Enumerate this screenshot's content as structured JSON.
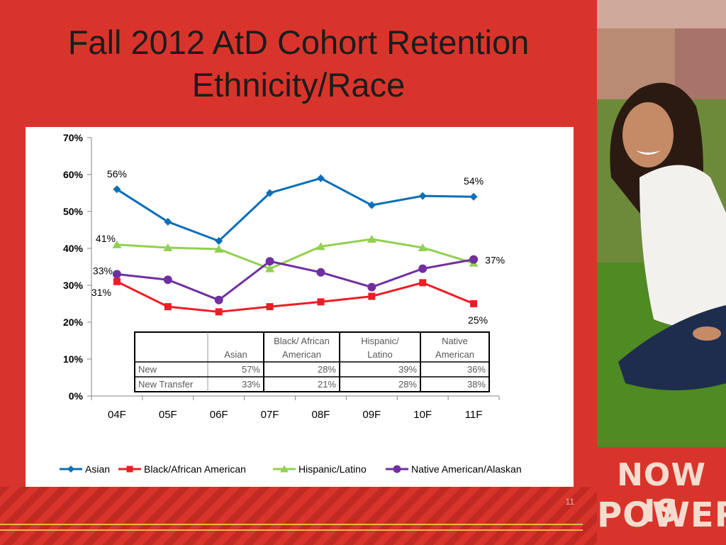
{
  "slide": {
    "title_line1": "Fall 2012 AtD Cohort Retention",
    "title_line2": "Ethnicity/Race",
    "slide_number": "11"
  },
  "brand": {
    "line1": "NOW IS",
    "line2": "POWER"
  },
  "colors": {
    "background": "#d9342b",
    "asian": "#0b6fb8",
    "black": "#ee1c25",
    "hispanic": "#92d050",
    "native": "#7030a0"
  },
  "chart_data": {
    "type": "line",
    "x": [
      "04F",
      "05F",
      "06F",
      "07F",
      "08F",
      "09F",
      "10F",
      "11F"
    ],
    "y_ticks": [
      "0%",
      "10%",
      "20%",
      "30%",
      "40%",
      "50%",
      "60%",
      "70%"
    ],
    "ylim": [
      0,
      70
    ],
    "legend_position": "bottom",
    "series": [
      {
        "name": "Asian",
        "color": "#0b6fb8",
        "marker": "diamond",
        "values": [
          56,
          47.2,
          42,
          55,
          59,
          51.7,
          54.2,
          54
        ]
      },
      {
        "name": "Black/African American",
        "color": "#ee1c25",
        "marker": "square",
        "values": [
          31,
          24.2,
          22.8,
          24.2,
          25.5,
          27,
          30.7,
          25
        ]
      },
      {
        "name": "Hispanic/Latino",
        "color": "#92d050",
        "marker": "triangle",
        "values": [
          41,
          40.2,
          39.8,
          34.5,
          40.5,
          42.5,
          40.2,
          36
        ]
      },
      {
        "name": "Native American/Alaskan",
        "color": "#7030a0",
        "marker": "circle",
        "values": [
          33,
          31.5,
          26,
          36.5,
          33.5,
          29.5,
          34.5,
          37
        ]
      }
    ],
    "data_labels": [
      {
        "series": "Asian",
        "index": 0,
        "text": "56%",
        "side": "above"
      },
      {
        "series": "Asian",
        "index": 7,
        "text": "54%",
        "side": "above"
      },
      {
        "series": "Hispanic/Latino",
        "index": 0,
        "text": "41%",
        "side": "left-above"
      },
      {
        "series": "Native American/Alaskan",
        "index": 0,
        "text": "33%",
        "side": "left"
      },
      {
        "series": "Black/African American",
        "index": 0,
        "text": "31%",
        "side": "below-left"
      },
      {
        "series": "Native American/Alaskan",
        "index": 7,
        "text": "37%",
        "side": "right"
      },
      {
        "series": "Black/African American",
        "index": 7,
        "text": "25%",
        "side": "below"
      }
    ],
    "inset_table": {
      "headers": [
        "",
        "Asian",
        "Black/ African American",
        "Hispanic/ Latino",
        "Native American"
      ],
      "header_lines": [
        [
          "",
          ""
        ],
        [
          "",
          "Asian"
        ],
        [
          "Black/ African",
          "American"
        ],
        [
          "Hispanic/",
          "Latino"
        ],
        [
          "Native",
          "American"
        ]
      ],
      "rows": [
        [
          "New",
          "57%",
          "28%",
          "39%",
          "36%"
        ],
        [
          "New Transfer",
          "33%",
          "21%",
          "28%",
          "38%"
        ]
      ]
    }
  }
}
